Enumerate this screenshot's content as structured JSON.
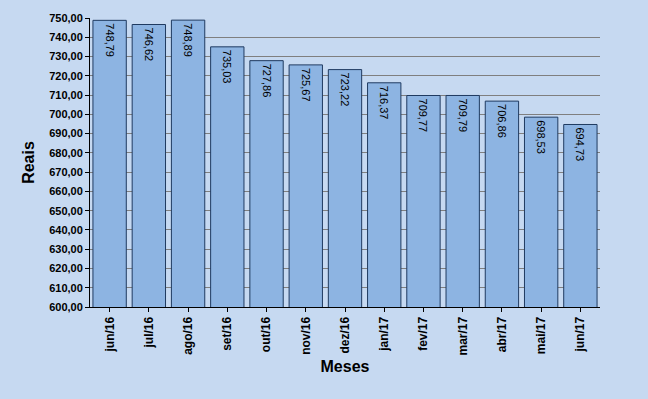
{
  "chart_data": {
    "type": "bar",
    "categories": [
      "jun/16",
      "jul/16",
      "ago/16",
      "set/16",
      "out/16",
      "nov/16",
      "dez/16",
      "jan/17",
      "fev/17",
      "mar/17",
      "abr/17",
      "mai/17",
      "jun/17"
    ],
    "values": [
      748.79,
      746.62,
      748.89,
      735.03,
      727.86,
      725.67,
      723.22,
      716.37,
      709.77,
      709.79,
      706.86,
      698.53,
      694.73
    ],
    "value_labels": [
      "748,79",
      "746,62",
      "748,89",
      "735,03",
      "727,86",
      "725,67",
      "723,22",
      "716,37",
      "709,77",
      "709,79",
      "706,86",
      "698,53",
      "694,73"
    ],
    "data_labels": true,
    "color": "#8db4e2",
    "xlabel": "Meses",
    "ylabel": "Reais",
    "ylim": [
      600,
      750
    ],
    "yticks": [
      {
        "value": 600,
        "label": "600,00"
      },
      {
        "value": 610,
        "label": "610,00"
      },
      {
        "value": 620,
        "label": "620,00"
      },
      {
        "value": 630,
        "label": "630,00"
      },
      {
        "value": 640,
        "label": "640,00"
      },
      {
        "value": 650,
        "label": "650,00"
      },
      {
        "value": 660,
        "label": "660,00"
      },
      {
        "value": 670,
        "label": "670,00"
      },
      {
        "value": 680,
        "label": "680,00"
      },
      {
        "value": 690,
        "label": "690,00"
      },
      {
        "value": 700,
        "label": "700,00"
      },
      {
        "value": 710,
        "label": "710,00"
      },
      {
        "value": 720,
        "label": "720,00"
      },
      {
        "value": 730,
        "label": "730,00"
      },
      {
        "value": 740,
        "label": "740,00"
      },
      {
        "value": 750,
        "label": "750,00"
      }
    ],
    "grid": true
  }
}
